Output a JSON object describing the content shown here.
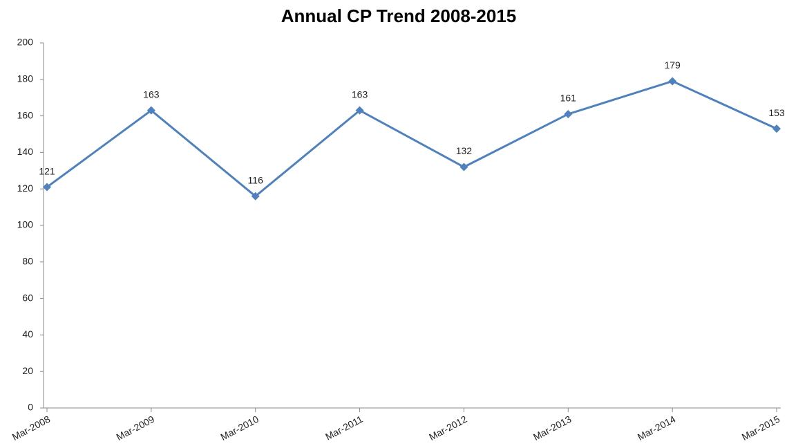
{
  "chart_data": {
    "type": "line",
    "title": "Annual CP Trend 2008-2015",
    "categories": [
      "Mar-2008",
      "Mar-2009",
      "Mar-2010",
      "Mar-2011",
      "Mar-2012",
      "Mar-2013",
      "Mar-2014",
      "Mar-2015"
    ],
    "series": [
      {
        "name": "CP",
        "color": "#4f81bd",
        "values": [
          121,
          163,
          116,
          163,
          132,
          161,
          179,
          153
        ]
      }
    ],
    "ylim": [
      0,
      200
    ],
    "yticks": [
      0,
      20,
      40,
      60,
      80,
      100,
      120,
      140,
      160,
      180,
      200
    ],
    "grid": false,
    "legend": false
  }
}
